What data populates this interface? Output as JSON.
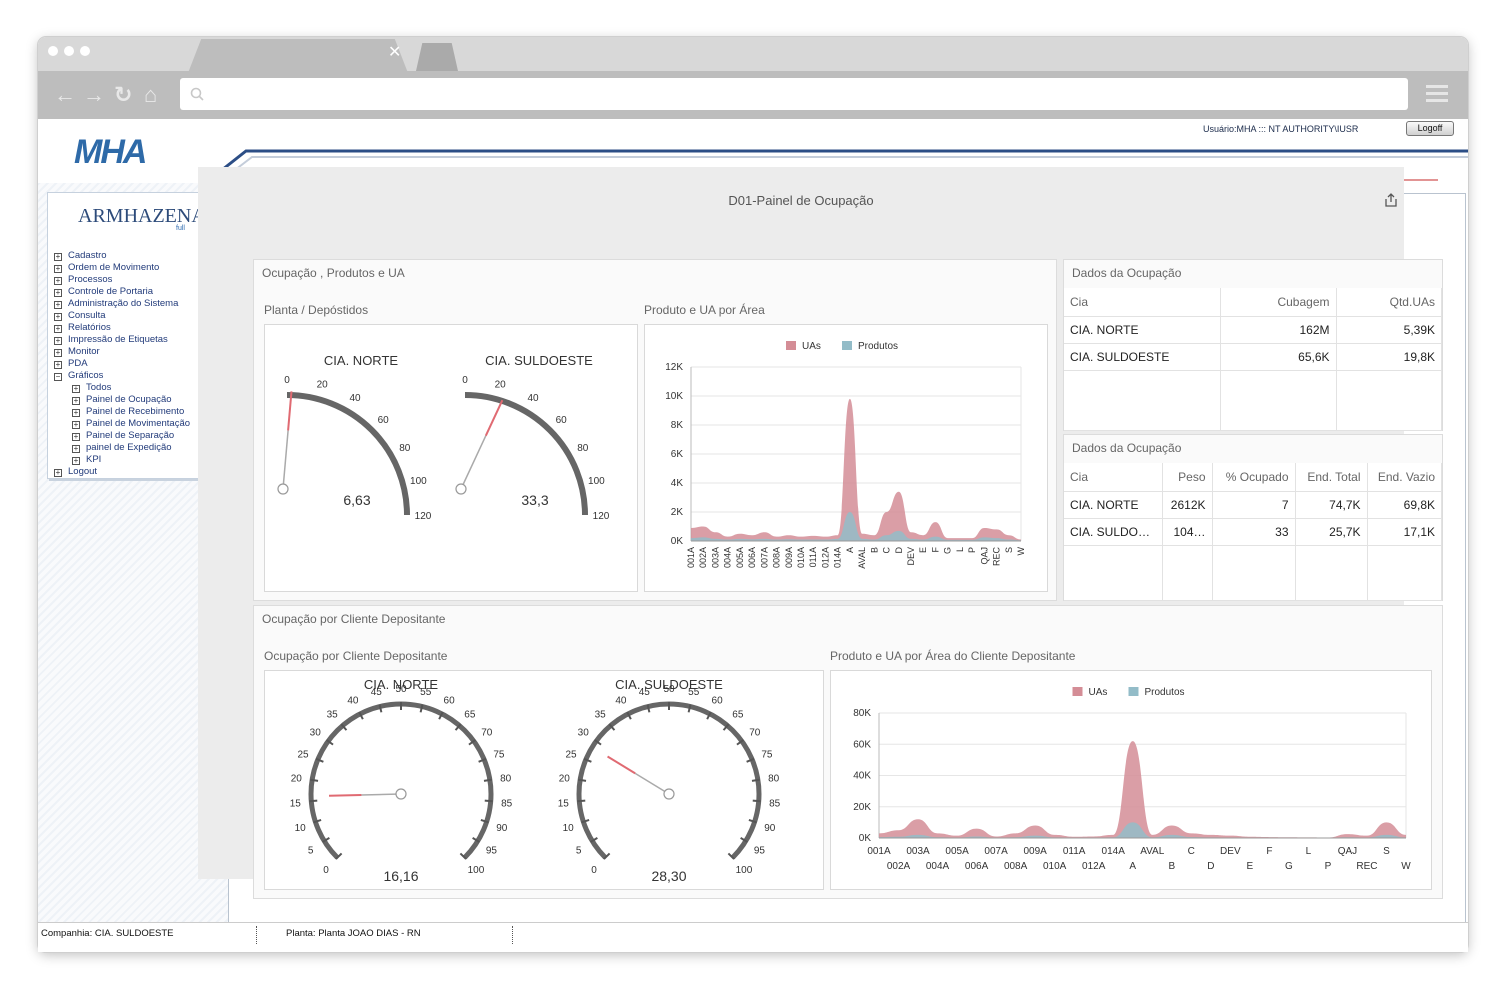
{
  "browser": {
    "address_value": ""
  },
  "header": {
    "brand": "MHA",
    "user_info": "Usuário:MHA ::: NT AUTHORITY\\IUSR",
    "logoff_label": "Logoff"
  },
  "sidebar": {
    "product_name": "ARMHAZENA",
    "product_edition": "full",
    "items": [
      {
        "label": "Cadastro",
        "expanded": false
      },
      {
        "label": "Ordem de Movimento",
        "expanded": false
      },
      {
        "label": "Processos",
        "expanded": false
      },
      {
        "label": "Controle de Portaria",
        "expanded": false
      },
      {
        "label": "Administração do Sistema",
        "expanded": false
      },
      {
        "label": "Consulta",
        "expanded": false
      },
      {
        "label": "Relatórios",
        "expanded": false
      },
      {
        "label": "Impressão de Etiquetas",
        "expanded": false
      },
      {
        "label": "Monitor",
        "expanded": false
      },
      {
        "label": "PDA",
        "expanded": false
      },
      {
        "label": "Gráficos",
        "expanded": true
      },
      {
        "label": "Todos",
        "sub": true
      },
      {
        "label": "Painel de Ocupação",
        "sub": true
      },
      {
        "label": "Painel de Recebimento",
        "sub": true
      },
      {
        "label": "Painel de Movimentação",
        "sub": true
      },
      {
        "label": "Painel de Separação",
        "sub": true
      },
      {
        "label": "painel de Expedição",
        "sub": true
      },
      {
        "label": "KPI",
        "sub": true
      },
      {
        "label": "Logout",
        "expanded": false
      }
    ]
  },
  "page": {
    "title": "D01-Painel de Ocupação"
  },
  "panel_top": {
    "title": "Ocupação , Produtos e UA",
    "gauges_title": "Planta / Depóstidos",
    "chart_title": "Produto e UA por Área"
  },
  "panel_bottom": {
    "title": "Ocupação por Cliente Depositante",
    "gauges_title": "Ocupação por Cliente Depositante",
    "chart_title": "Produto e UA por Área do Cliente Depositante"
  },
  "table1": {
    "title": "Dados da Ocupação",
    "headers": [
      "Cia",
      "Cubagem",
      "Qtd.UAs"
    ],
    "rows": [
      [
        "CIA. NORTE",
        "162M",
        "5,39K"
      ],
      [
        "CIA. SULDOESTE",
        "65,6K",
        "19,8K"
      ]
    ]
  },
  "table2": {
    "title": "Dados da Ocupação",
    "headers": [
      "Cia",
      "Peso",
      "% Ocupado",
      "End. Total",
      "End. Vazio"
    ],
    "rows": [
      [
        "CIA. NORTE",
        "2612K",
        "7",
        "74,7K",
        "69,8K"
      ],
      [
        "CIA. SULDO…",
        "104…",
        "33",
        "25,7K",
        "17,1K"
      ]
    ]
  },
  "colors": {
    "uas": "#d48d96",
    "produtos": "#93bcc8",
    "needle": "#e06a72",
    "accent": "#2a5fa8"
  },
  "chart_data": [
    {
      "type": "gauge",
      "name": "CIA. NORTE",
      "value": 6.63,
      "value_label": "6,63",
      "min": 0,
      "max": 120,
      "ticks": [
        "0",
        "20",
        "40",
        "60",
        "80",
        "100",
        "120"
      ]
    },
    {
      "type": "gauge",
      "name": "CIA. SULDOESTE",
      "value": 33.3,
      "value_label": "33,3",
      "min": 0,
      "max": 120,
      "ticks": [
        "0",
        "20",
        "40",
        "60",
        "80",
        "100",
        "120"
      ]
    },
    {
      "type": "area",
      "legend": [
        "UAs",
        "Produtos"
      ],
      "y_ticks": [
        "0K",
        "2K",
        "4K",
        "6K",
        "8K",
        "10K",
        "12K"
      ],
      "ylim": [
        0,
        12000
      ],
      "categories": [
        "001A",
        "002A",
        "003A",
        "004A",
        "005A",
        "006A",
        "007A",
        "008A",
        "009A",
        "010A",
        "011A",
        "012A",
        "014A",
        "A",
        "AVAL",
        "B",
        "C",
        "D",
        "DEV",
        "E",
        "F",
        "G",
        "L",
        "P",
        "QAJ",
        "REC",
        "S",
        "W"
      ],
      "series": [
        {
          "name": "UAs",
          "values": [
            900,
            1000,
            600,
            300,
            500,
            400,
            600,
            300,
            400,
            300,
            350,
            300,
            400,
            9800,
            500,
            400,
            2000,
            3400,
            600,
            400,
            1300,
            200,
            200,
            200,
            900,
            800,
            400,
            100
          ]
        },
        {
          "name": "Produtos",
          "values": [
            200,
            250,
            150,
            100,
            150,
            120,
            150,
            100,
            120,
            100,
            100,
            100,
            150,
            2000,
            150,
            100,
            400,
            700,
            150,
            100,
            300,
            80,
            80,
            80,
            250,
            200,
            100,
            50
          ]
        }
      ]
    },
    {
      "type": "gauge",
      "name": "CIA. NORTE",
      "value": 16.16,
      "value_label": "16,16",
      "min": 0,
      "max": 100,
      "ticks": [
        "0",
        "5",
        "10",
        "15",
        "20",
        "25",
        "30",
        "35",
        "40",
        "45",
        "50",
        "55",
        "60",
        "65",
        "70",
        "75",
        "80",
        "85",
        "90",
        "95",
        "100"
      ]
    },
    {
      "type": "gauge",
      "name": "CIA. SULDOESTE",
      "value": 28.3,
      "value_label": "28,30",
      "min": 0,
      "max": 100,
      "ticks": [
        "0",
        "5",
        "10",
        "15",
        "20",
        "25",
        "30",
        "35",
        "40",
        "45",
        "50",
        "55",
        "60",
        "65",
        "70",
        "75",
        "80",
        "85",
        "90",
        "95",
        "100"
      ]
    },
    {
      "type": "area",
      "legend": [
        "UAs",
        "Produtos"
      ],
      "y_ticks": [
        "0K",
        "20K",
        "40K",
        "60K",
        "80K"
      ],
      "ylim": [
        0,
        80000
      ],
      "categories": [
        "001A",
        "002A",
        "003A",
        "004A",
        "005A",
        "006A",
        "007A",
        "008A",
        "009A",
        "010A",
        "011A",
        "012A",
        "014A",
        "A",
        "AVAL",
        "B",
        "C",
        "D",
        "DEV",
        "E",
        "F",
        "G",
        "L",
        "P",
        "QAJ",
        "REC",
        "S",
        "W"
      ],
      "x_labels_row1": [
        "001A",
        "003A",
        "005A",
        "007A",
        "009A",
        "011A",
        "014A",
        "AVAL",
        "C",
        "DEV",
        "F",
        "L",
        "QAJ",
        "S"
      ],
      "x_labels_row2": [
        "002A",
        "004A",
        "006A",
        "008A",
        "010A",
        "012A",
        "A",
        "B",
        "D",
        "E",
        "G",
        "P",
        "REC",
        "W"
      ],
      "series": [
        {
          "name": "UAs",
          "values": [
            3000,
            5000,
            12000,
            3000,
            1500,
            6000,
            1000,
            3000,
            8000,
            2000,
            800,
            1000,
            2000,
            62000,
            2000,
            8000,
            3000,
            2000,
            1500,
            800,
            600,
            500,
            400,
            300,
            2500,
            1500,
            10000,
            2000
          ]
        },
        {
          "name": "Produtos",
          "values": [
            500,
            800,
            2000,
            500,
            300,
            1000,
            200,
            500,
            1500,
            400,
            200,
            200,
            400,
            10000,
            400,
            2000,
            600,
            400,
            300,
            200,
            150,
            100,
            100,
            80,
            500,
            300,
            2000,
            400
          ]
        }
      ]
    }
  ]
}
